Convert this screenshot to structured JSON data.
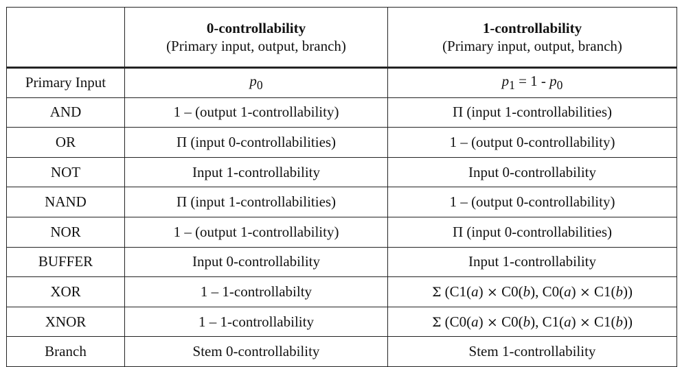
{
  "header": {
    "corner": "",
    "col1_title": "0-controllability",
    "col1_subtitle": "(Primary input, output, branch)",
    "col2_title": "1-controllability",
    "col2_subtitle": "(Primary input, output, branch)"
  },
  "primary_input": {
    "label": "Primary Input",
    "c0_var": "p",
    "c0_sub": "0",
    "c1_var": "p",
    "c1_sub": "1",
    "c1_mid": " = 1 - ",
    "c1_var2": "p",
    "c1_sub2": "0"
  },
  "rows": [
    {
      "gate": "AND",
      "c0": "1 – (output 1-controllability)",
      "c1": "Π (input 1-controllabilities)"
    },
    {
      "gate": "OR",
      "c0": "Π (input 0-controllabilities)",
      "c1": "1 – (output 0-controllability)"
    },
    {
      "gate": "NOT",
      "c0": "Input 1-controllability",
      "c1": "Input 0-controllability"
    },
    {
      "gate": "NAND",
      "c0": "Π (input 1-controllabilities)",
      "c1": "1 – (output 0-controllability)"
    },
    {
      "gate": "NOR",
      "c0": "1 – (output 1-controllability)",
      "c1": "Π (input 0-controllabilities)"
    },
    {
      "gate": "BUFFER",
      "c0": "Input 0-controllability",
      "c1": "Input 1-controllability"
    },
    {
      "gate": "XOR",
      "c0": "1 – 1-controllabilty"
    },
    {
      "gate": "XNOR",
      "c0": "1 – 1-controllability"
    },
    {
      "gate": "Branch",
      "c0": "Stem 0-controllability",
      "c1": "Stem 1-controllability"
    }
  ],
  "xor_c1": {
    "sigma": "Σ",
    "open": " (C1(",
    "a1": "a",
    "mid1": ") ",
    "times1": "×",
    "mid2": " C0(",
    "b1": "b",
    "mid3": "), C0(",
    "a2": "a",
    "mid4": ") ",
    "times2": "×",
    "mid5": " C1(",
    "b2": "b",
    "close": "))"
  },
  "xnor_c1": {
    "sigma": "Σ",
    "open": " (C0(",
    "a1": "a",
    "mid1": ") ",
    "times1": "×",
    "mid2": " C0(",
    "b1": "b",
    "mid3": "), C1(",
    "a2": "a",
    "mid4": ") ",
    "times2": "×",
    "mid5": " C1(",
    "b2": "b",
    "close": "))"
  }
}
